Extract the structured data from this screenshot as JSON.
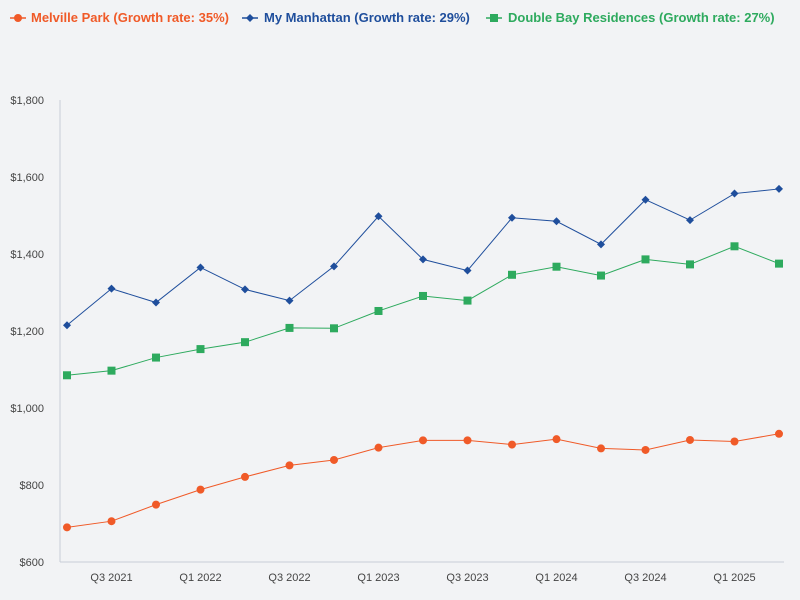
{
  "chart_data": {
    "type": "line",
    "title": "",
    "xlabel": "",
    "ylabel": "",
    "ylim": [
      600,
      1800
    ],
    "yticks": [
      600,
      800,
      1000,
      1200,
      1400,
      1600,
      1800
    ],
    "ytick_labels": [
      "$600",
      "$800",
      "$1,000",
      "$1,200",
      "$1,400",
      "$1,600",
      "$1,800"
    ],
    "x_count": 17,
    "xticks": [
      {
        "index": 1,
        "label": "Q3 2021"
      },
      {
        "index": 3,
        "label": "Q1 2022"
      },
      {
        "index": 5,
        "label": "Q3 2022"
      },
      {
        "index": 7,
        "label": "Q1 2023"
      },
      {
        "index": 9,
        "label": "Q3 2023"
      },
      {
        "index": 11,
        "label": "Q1 2024"
      },
      {
        "index": 13,
        "label": "Q3 2024"
      },
      {
        "index": 15,
        "label": "Q1 2025"
      }
    ],
    "legend_position": "top-left",
    "series": [
      {
        "name": "Melville Park (Growth rate: 35%)",
        "color": "#f05a28",
        "marker": "circle",
        "values": [
          690,
          706,
          749,
          788,
          821,
          851,
          865,
          897,
          916,
          916,
          905,
          919,
          895,
          891,
          917,
          913,
          933
        ]
      },
      {
        "name": "My Manhattan (Growth rate: 29%)",
        "color": "#1f4e9c",
        "marker": "diamond",
        "values": [
          1215,
          1310,
          1274,
          1365,
          1308,
          1279,
          1368,
          1498,
          1386,
          1357,
          1494,
          1485,
          1425,
          1541,
          1488,
          1557,
          1569
        ]
      },
      {
        "name": "Double Bay Residences (Growth rate: 27%)",
        "color": "#2eaa5e",
        "marker": "square",
        "values": [
          1085,
          1097,
          1131,
          1153,
          1171,
          1208,
          1207,
          1252,
          1291,
          1279,
          1346,
          1367,
          1344,
          1386,
          1373,
          1420,
          1375
        ]
      }
    ]
  }
}
